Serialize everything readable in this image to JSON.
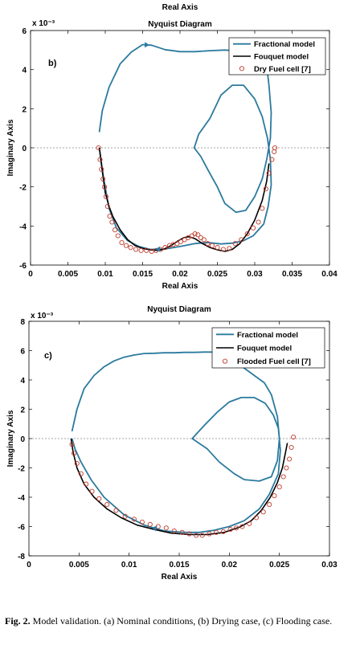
{
  "header": {
    "top_label": "Real Axis"
  },
  "caption": {
    "fig_label": "Fig. 2.",
    "text": "Model validation. (a) Nominal conditions, (b) Drying case, (c) Flooding case."
  },
  "colors": {
    "fractional": "#2b7a9e",
    "fouquet": "#000000",
    "marker": "#c0392b",
    "zero_line": "#888888"
  },
  "chart_data": [
    {
      "type": "line",
      "panel_label": "b)",
      "title": "Nyquist Diagram",
      "xlabel": "Real Axis",
      "ylabel": "Imaginary Axis",
      "exponent": "x 10⁻³",
      "xlim": [
        0,
        0.04
      ],
      "ylim": [
        -6,
        6
      ],
      "x_ticks": [
        0,
        0.005,
        0.01,
        0.015,
        0.02,
        0.025,
        0.03,
        0.035,
        0.04
      ],
      "x_tick_labels": [
        "0",
        "0.005",
        "0.01",
        "0.015",
        "0.02",
        "0.025",
        "0.03",
        "0.035",
        "0.04"
      ],
      "y_ticks": [
        -6,
        -4,
        -2,
        0,
        2,
        4,
        6
      ],
      "y_tick_labels": [
        "-6",
        "-4",
        "-2",
        "0",
        "2",
        "4",
        "6"
      ],
      "legend": {
        "position": "top-right",
        "entries": [
          "Fractional model",
          "Fouquet model",
          "Dry Fuel cell [7]"
        ]
      },
      "series": [
        {
          "name": "Fractional model",
          "kind": "line",
          "x": [
            0.0092,
            0.0096,
            0.0105,
            0.012,
            0.0135,
            0.015,
            0.0162,
            0.018,
            0.02,
            0.022,
            0.024,
            0.026,
            0.028,
            0.0295,
            0.031,
            0.0316,
            0.0319,
            0.0322,
            0.0321,
            0.0316,
            0.031,
            0.03,
            0.0288,
            0.0275,
            0.026,
            0.025,
            0.0237,
            0.0228,
            0.0219,
            0.0225,
            0.024,
            0.0255,
            0.027,
            0.0285,
            0.03,
            0.031,
            0.0317,
            0.0321,
            0.0322,
            0.0318,
            0.0312,
            0.0298,
            0.0285,
            0.027,
            0.0255,
            0.0238,
            0.022,
            0.02,
            0.018,
            0.016,
            0.0145,
            0.013,
            0.0115,
            0.0105,
            0.0098,
            0.0092
          ],
          "y": [
            0.8,
            1.9,
            3.1,
            4.3,
            4.9,
            5.28,
            5.25,
            5.02,
            4.92,
            4.92,
            4.97,
            5.0,
            4.95,
            4.85,
            4.6,
            4.2,
            3.2,
            1.8,
            0.5,
            -0.6,
            -1.6,
            -2.5,
            -3.2,
            -3.3,
            -2.85,
            -2.0,
            -1.1,
            -0.45,
            0.0,
            0.7,
            1.5,
            2.7,
            3.2,
            3.2,
            2.5,
            1.6,
            0.5,
            -0.6,
            -1.9,
            -3.0,
            -3.9,
            -4.5,
            -4.75,
            -4.88,
            -4.92,
            -4.85,
            -4.9,
            -5.05,
            -5.18,
            -5.2,
            -5.05,
            -4.75,
            -4.1,
            -3.1,
            -1.6,
            0.0
          ]
        },
        {
          "name": "Fouquet model",
          "kind": "line",
          "x": [
            0.0092,
            0.0096,
            0.01,
            0.0105,
            0.011,
            0.012,
            0.013,
            0.014,
            0.015,
            0.016,
            0.017,
            0.0178,
            0.0188,
            0.0198,
            0.0205,
            0.0212,
            0.022,
            0.023,
            0.024,
            0.025,
            0.026,
            0.027,
            0.028,
            0.029,
            0.03,
            0.031,
            0.0316,
            0.0319
          ],
          "y": [
            0.0,
            -1.2,
            -2.3,
            -3.0,
            -3.5,
            -4.2,
            -4.7,
            -5.0,
            -5.15,
            -5.22,
            -5.25,
            -5.2,
            -5.0,
            -4.75,
            -4.6,
            -4.55,
            -4.65,
            -4.9,
            -5.1,
            -5.22,
            -5.3,
            -5.2,
            -4.9,
            -4.4,
            -3.7,
            -2.7,
            -1.7,
            -0.8
          ]
        },
        {
          "name": "Dry Fuel cell [7]",
          "kind": "markers",
          "x": [
            0.0091,
            0.0093,
            0.0095,
            0.0097,
            0.0099,
            0.0101,
            0.0103,
            0.0106,
            0.0109,
            0.0113,
            0.0117,
            0.0122,
            0.0128,
            0.0134,
            0.0141,
            0.0148,
            0.0155,
            0.0162,
            0.0168,
            0.0174,
            0.018,
            0.0186,
            0.0191,
            0.0196,
            0.0201,
            0.0206,
            0.0211,
            0.0216,
            0.022,
            0.0224,
            0.0228,
            0.0232,
            0.0237,
            0.0243,
            0.025,
            0.0258,
            0.0266,
            0.0274,
            0.0282,
            0.029,
            0.0298,
            0.0305,
            0.031,
            0.0315,
            0.0319,
            0.0323,
            0.0326,
            0.0327
          ],
          "y": [
            0.0,
            -0.6,
            -1.1,
            -1.6,
            -2.0,
            -2.5,
            -3.0,
            -3.5,
            -3.8,
            -4.2,
            -4.5,
            -4.85,
            -5.0,
            -5.1,
            -5.2,
            -5.25,
            -5.25,
            -5.3,
            -5.25,
            -5.2,
            -5.1,
            -5.0,
            -4.95,
            -4.9,
            -4.8,
            -4.7,
            -4.6,
            -4.5,
            -4.4,
            -4.45,
            -4.6,
            -4.7,
            -4.9,
            -5.0,
            -5.1,
            -5.2,
            -5.15,
            -4.9,
            -4.7,
            -4.4,
            -4.1,
            -3.8,
            -3.1,
            -2.1,
            -1.3,
            -0.6,
            -0.2,
            0.0
          ]
        }
      ]
    },
    {
      "type": "line",
      "panel_label": "c)",
      "title": "Nyquist Diagram",
      "xlabel": "Real Axis",
      "ylabel": "Imaginary Axis",
      "exponent": "x 10⁻³",
      "xlim": [
        0,
        0.03
      ],
      "ylim": [
        -8,
        8
      ],
      "x_ticks": [
        0,
        0.005,
        0.01,
        0.015,
        0.02,
        0.025,
        0.03
      ],
      "x_tick_labels": [
        "0",
        "0.005",
        "0.01",
        "0.015",
        "0.02",
        "0.025",
        "0.03"
      ],
      "y_ticks": [
        -8,
        -6,
        -4,
        -2,
        0,
        2,
        4,
        6,
        8
      ],
      "y_tick_labels": [
        "-8",
        "-6",
        "-4",
        "-2",
        "0",
        "2",
        "4",
        "6",
        "8"
      ],
      "legend": {
        "position": "top-right",
        "entries": [
          "Fractional model",
          "Fouquet model",
          "Flooded Fuel cell [7]"
        ]
      },
      "series": [
        {
          "name": "Fractional model",
          "kind": "line",
          "x": [
            0.0043,
            0.0048,
            0.0055,
            0.0065,
            0.0075,
            0.0085,
            0.0095,
            0.0105,
            0.0115,
            0.0125,
            0.0135,
            0.0145,
            0.0155,
            0.0165,
            0.0175,
            0.0185,
            0.0193,
            0.0196,
            0.0198,
            0.02,
            0.0205,
            0.0215,
            0.0225,
            0.0235,
            0.0242,
            0.0248,
            0.025,
            0.0248,
            0.0242,
            0.023,
            0.0215,
            0.0205,
            0.019,
            0.0178,
            0.0163,
            0.0175,
            0.0188,
            0.02,
            0.0212,
            0.0225,
            0.0236,
            0.0244,
            0.0249,
            0.0251,
            0.0249,
            0.024,
            0.023,
            0.0215,
            0.02,
            0.0185,
            0.017,
            0.0155,
            0.0135,
            0.0115,
            0.0095,
            0.0075,
            0.0062,
            0.0052,
            0.0046,
            0.0043
          ],
          "y": [
            0.5,
            2.0,
            3.4,
            4.3,
            4.9,
            5.3,
            5.55,
            5.7,
            5.8,
            5.82,
            5.85,
            5.85,
            5.88,
            5.88,
            5.9,
            5.9,
            5.85,
            5.7,
            5.5,
            5.35,
            5.2,
            4.8,
            4.3,
            3.8,
            3.0,
            1.5,
            0.0,
            -1.5,
            -2.6,
            -2.9,
            -2.8,
            -2.4,
            -1.6,
            -0.7,
            0.0,
            0.9,
            1.8,
            2.5,
            2.8,
            2.8,
            2.4,
            1.6,
            0.7,
            -0.8,
            -2.4,
            -3.8,
            -4.8,
            -5.6,
            -6.0,
            -6.25,
            -6.4,
            -6.4,
            -6.3,
            -5.9,
            -5.2,
            -4.0,
            -2.8,
            -1.6,
            -0.7,
            0.0
          ]
        },
        {
          "name": "Fouquet model",
          "kind": "line",
          "x": [
            0.0042,
            0.0044,
            0.0048,
            0.0055,
            0.0065,
            0.0078,
            0.0092,
            0.0108,
            0.0125,
            0.0142,
            0.016,
            0.0178,
            0.0195,
            0.021,
            0.0222,
            0.0232,
            0.0241,
            0.0248,
            0.0253,
            0.0256,
            0.0258
          ],
          "y": [
            0.0,
            -0.9,
            -2.0,
            -3.1,
            -4.0,
            -4.8,
            -5.4,
            -5.9,
            -6.2,
            -6.45,
            -6.55,
            -6.55,
            -6.4,
            -6.05,
            -5.6,
            -4.9,
            -4.0,
            -3.0,
            -2.0,
            -1.0,
            -0.3
          ]
        },
        {
          "name": "Flooded Fuel cell [7]",
          "kind": "markers",
          "x": [
            0.0043,
            0.0045,
            0.0048,
            0.0052,
            0.0057,
            0.0063,
            0.007,
            0.0078,
            0.0087,
            0.0096,
            0.0105,
            0.0113,
            0.0121,
            0.0129,
            0.0137,
            0.0145,
            0.0153,
            0.016,
            0.0167,
            0.0173,
            0.018,
            0.0187,
            0.0194,
            0.0201,
            0.0207,
            0.0213,
            0.022,
            0.0227,
            0.0234,
            0.024,
            0.0245,
            0.025,
            0.0254,
            0.0257,
            0.026,
            0.0262,
            0.0264
          ],
          "y": [
            -0.4,
            -1.0,
            -1.7,
            -2.4,
            -3.1,
            -3.6,
            -4.1,
            -4.5,
            -4.9,
            -5.3,
            -5.5,
            -5.7,
            -5.85,
            -6.0,
            -6.1,
            -6.3,
            -6.4,
            -6.5,
            -6.6,
            -6.6,
            -6.5,
            -6.4,
            -6.35,
            -6.2,
            -6.1,
            -6.0,
            -5.8,
            -5.4,
            -5.0,
            -4.5,
            -3.9,
            -3.3,
            -2.6,
            -2.0,
            -1.4,
            -0.6,
            0.1
          ]
        }
      ]
    }
  ]
}
